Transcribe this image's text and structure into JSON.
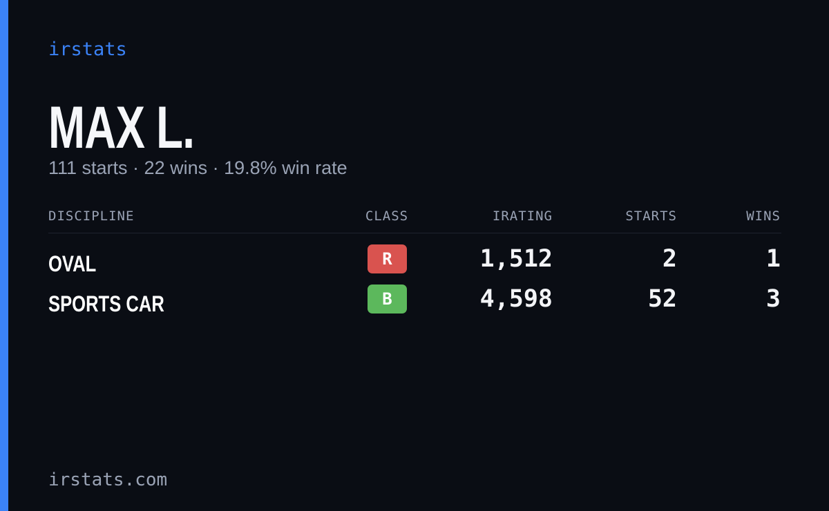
{
  "brand": "irstats",
  "player": {
    "name": "MAX L.",
    "summary": "111 starts · 22 wins · 19.8% win rate"
  },
  "table": {
    "columns": [
      "DISCIPLINE",
      "CLASS",
      "IRATING",
      "STARTS",
      "WINS"
    ],
    "rows": [
      {
        "discipline": "OVAL",
        "class": "R",
        "class_color": "#d9534f",
        "irating": "1,512",
        "starts": "2",
        "wins": "1"
      },
      {
        "discipline": "SPORTS CAR",
        "class": "B",
        "class_color": "#5cb85c",
        "irating": "4,598",
        "starts": "52",
        "wins": "3"
      }
    ]
  },
  "footer": "irstats.com"
}
